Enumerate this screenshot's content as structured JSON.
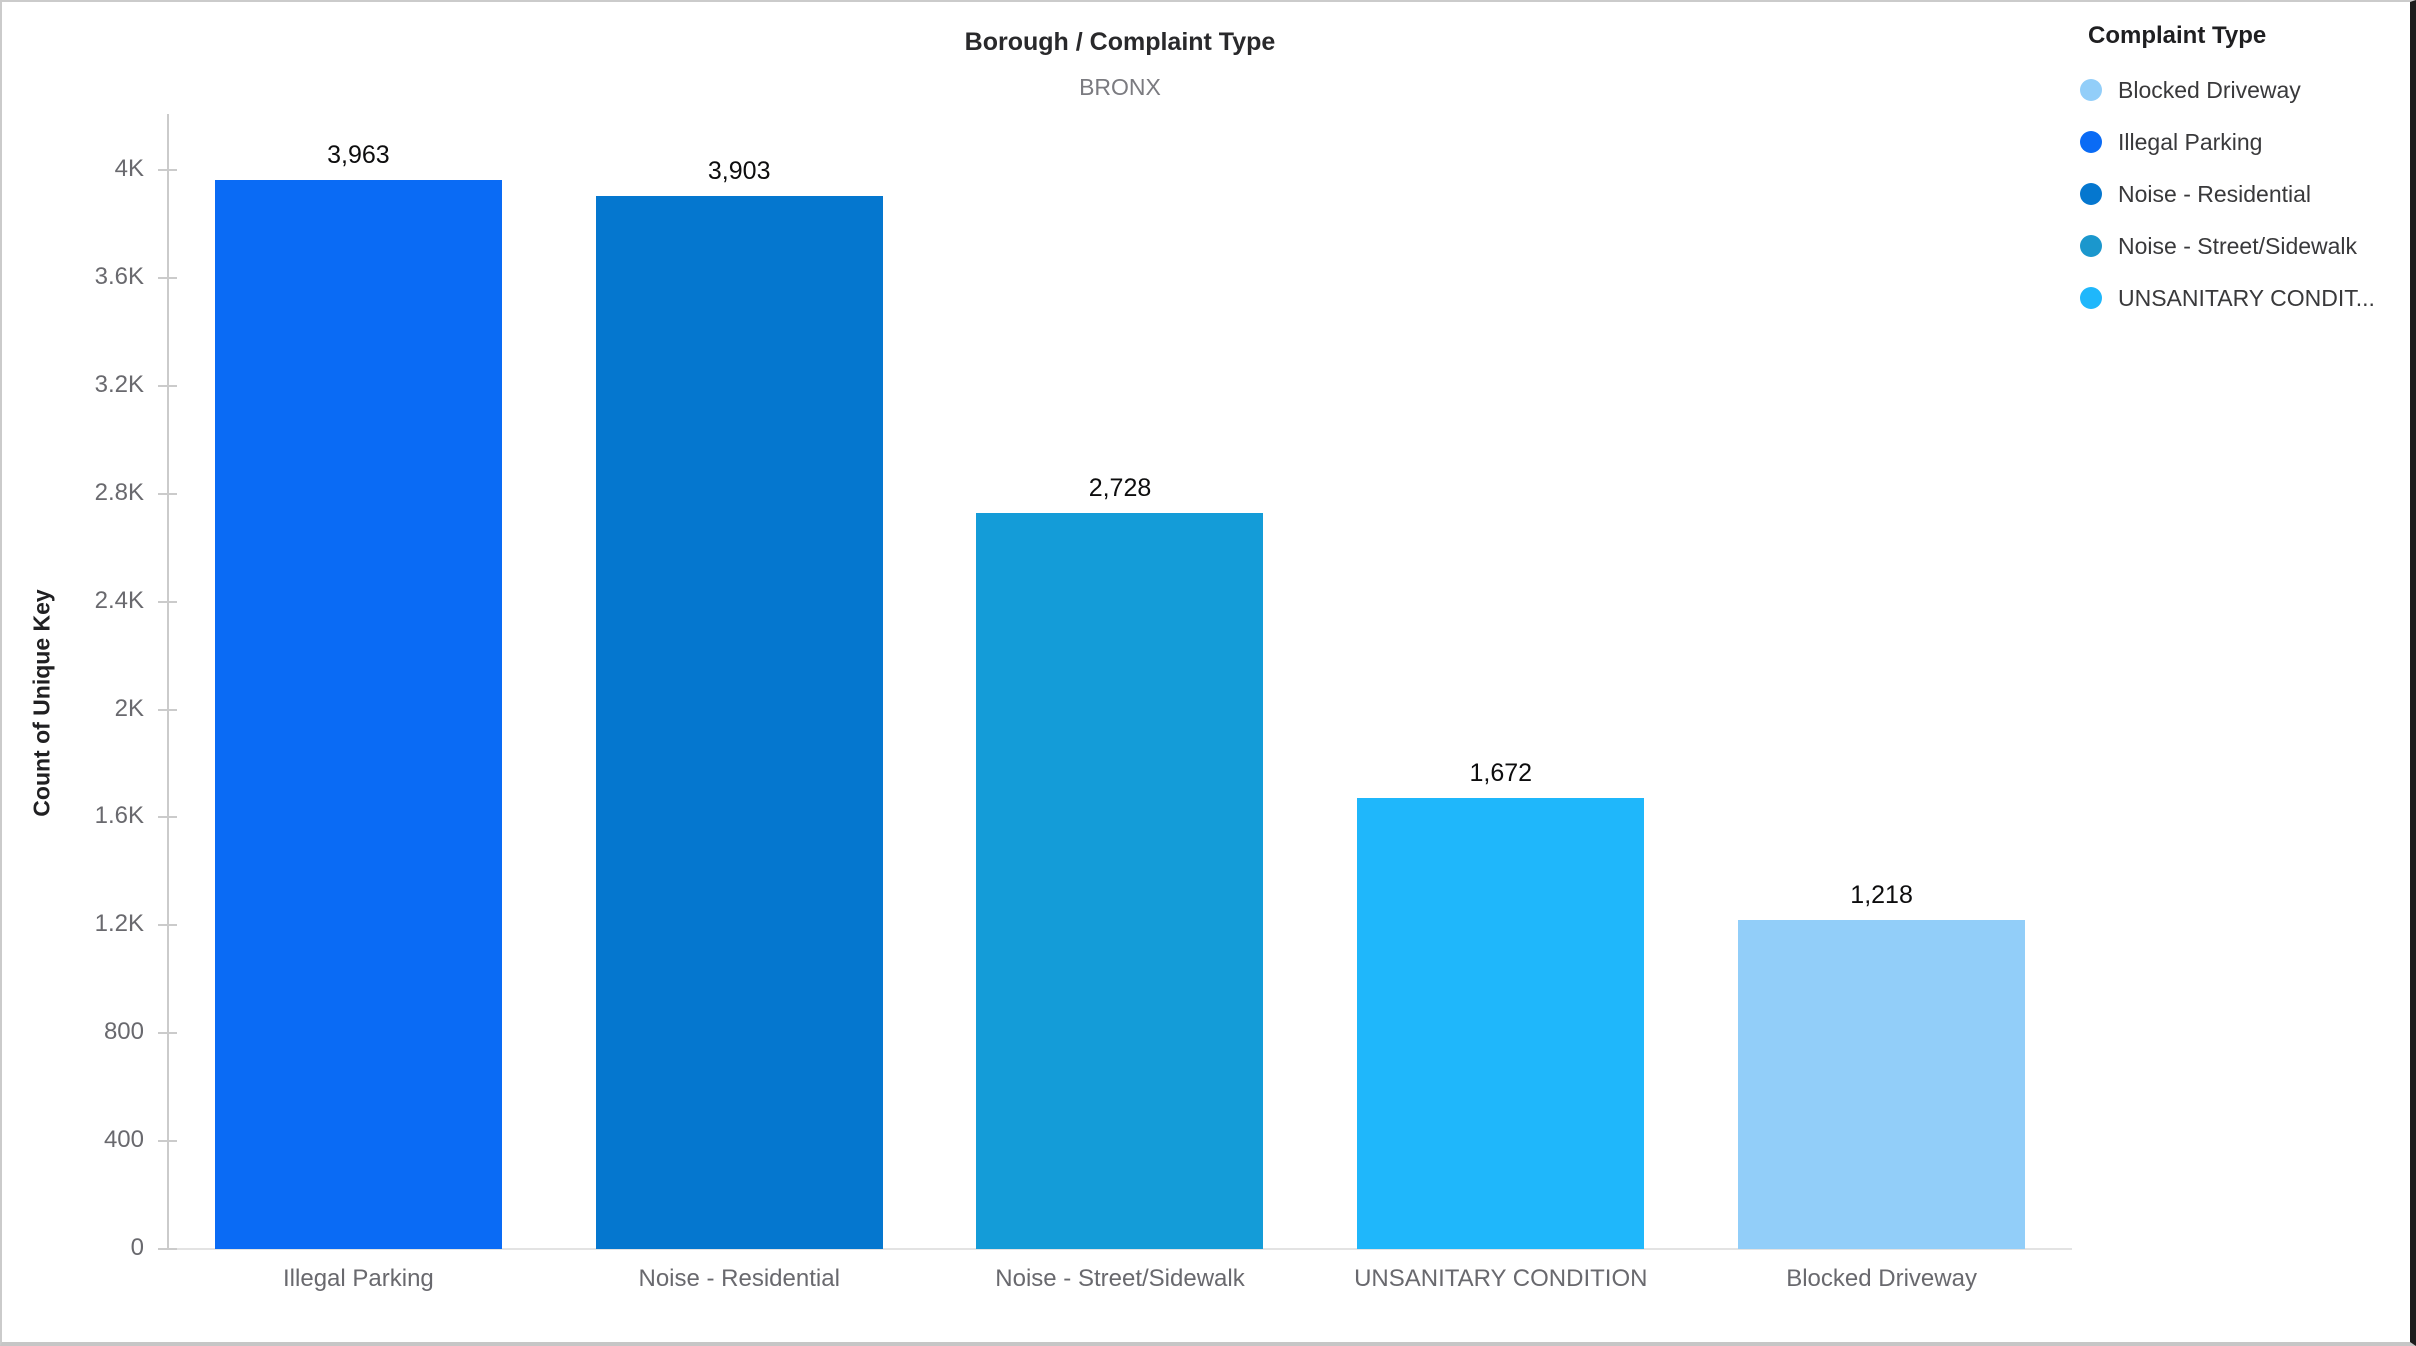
{
  "header": {
    "title": "Borough / Complaint Type",
    "subtitle": "BRONX"
  },
  "legend": {
    "title": "Complaint Type",
    "items": [
      {
        "label": "Blocked Driveway",
        "color": "#92cef9"
      },
      {
        "label": "Illegal Parking",
        "color": "#0a6bf5"
      },
      {
        "label": "Noise - Residential",
        "color": "#0577cf"
      },
      {
        "label": "Noise - Street/Sidewalk",
        "color": "#1b97cd"
      },
      {
        "label": "UNSANITARY CONDIT...",
        "color": "#1fb7fb"
      }
    ]
  },
  "chart_data": {
    "type": "bar",
    "title": "Borough / Complaint Type",
    "subtitle": "BRONX",
    "xlabel": "",
    "ylabel": "Count of Unique Key",
    "ylim": [
      0,
      4000
    ],
    "grid": false,
    "legend_position": "right",
    "categories": [
      "Illegal Parking",
      "Noise - Residential",
      "Noise - Street/Sidewalk",
      "UNSANITARY CONDITION",
      "Blocked Driveway"
    ],
    "values": [
      3963,
      3903,
      2728,
      1672,
      1218
    ],
    "value_labels": [
      "3,963",
      "3,903",
      "2,728",
      "1,672",
      "1,218"
    ],
    "bar_colors": [
      "#0a6bf5",
      "#0577cf",
      "#149cd8",
      "#1fb7fb",
      "#92cef9"
    ],
    "y_ticks": [
      {
        "value": 0,
        "label": "0"
      },
      {
        "value": 400,
        "label": "400"
      },
      {
        "value": 800,
        "label": "800"
      },
      {
        "value": 1200,
        "label": "1.2K"
      },
      {
        "value": 1600,
        "label": "1.6K"
      },
      {
        "value": 2000,
        "label": "2K"
      },
      {
        "value": 2400,
        "label": "2.4K"
      },
      {
        "value": 2800,
        "label": "2.8K"
      },
      {
        "value": 3200,
        "label": "3.2K"
      },
      {
        "value": 3600,
        "label": "3.6K"
      },
      {
        "value": 4000,
        "label": "4K"
      }
    ]
  }
}
